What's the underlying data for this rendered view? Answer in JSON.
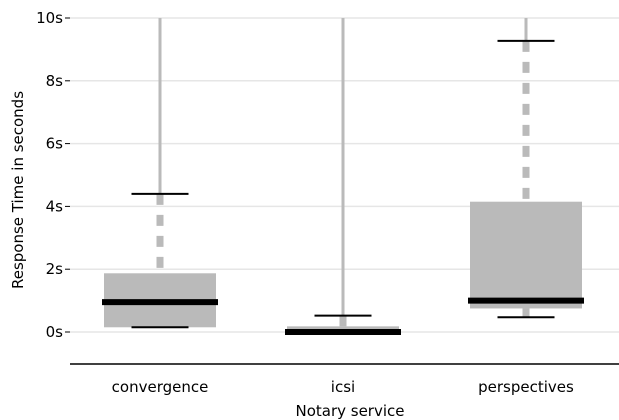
{
  "chart_data": {
    "type": "box",
    "xlabel": "Notary service",
    "ylabel": "Response Time in seconds",
    "ylim": [
      -1.05,
      10
    ],
    "yticks": [
      {
        "value": 0,
        "label": "0s"
      },
      {
        "value": 2,
        "label": "2s"
      },
      {
        "value": 4,
        "label": "4s"
      },
      {
        "value": 6,
        "label": "6s"
      },
      {
        "value": 8,
        "label": "8s"
      },
      {
        "value": 10,
        "label": "10s"
      }
    ],
    "grid": true,
    "categories": [
      "convergence",
      "icsi",
      "perspectives"
    ],
    "boxes": [
      {
        "category": "convergence",
        "q1": 0.15,
        "median": 0.95,
        "q3": 1.87,
        "whisker_low": 0.15,
        "whisker_high": 4.4,
        "max": 10
      },
      {
        "category": "icsi",
        "q1": 0.0,
        "median": 0.0,
        "q3": 0.18,
        "whisker_low": 0.0,
        "whisker_high": 0.52,
        "max": 10
      },
      {
        "category": "perspectives",
        "q1": 0.75,
        "median": 1.0,
        "q3": 4.15,
        "whisker_low": 0.47,
        "whisker_high": 9.27,
        "max": 10
      }
    ],
    "colors": {
      "box": "#bababa",
      "median": "#000000",
      "whisker": "#000000",
      "grid": "#e6e6e6"
    }
  }
}
